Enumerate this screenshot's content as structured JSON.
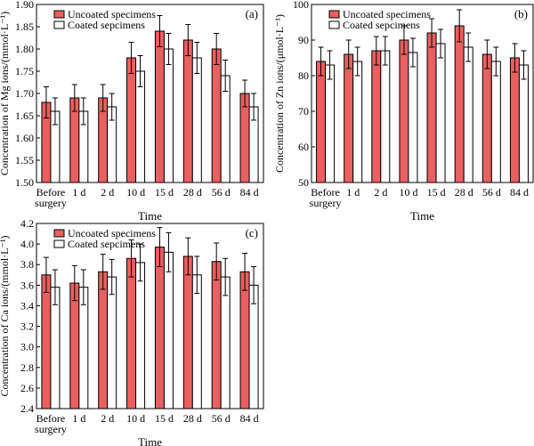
{
  "chart_data": [
    {
      "panel_label": "(a)",
      "type": "bar",
      "categories": [
        "Before surgery",
        "1 d",
        "2 d",
        "10 d",
        "15 d",
        "28 d",
        "56 d",
        "84 d"
      ],
      "series": [
        {
          "name": "Uncoated specimens",
          "values": [
            1.68,
            1.69,
            1.69,
            1.78,
            1.84,
            1.82,
            1.8,
            1.7
          ],
          "errors": [
            0.035,
            0.03,
            0.03,
            0.035,
            0.035,
            0.035,
            0.035,
            0.03
          ]
        },
        {
          "name": "Coated sepcimens",
          "values": [
            1.66,
            1.66,
            1.67,
            1.75,
            1.8,
            1.78,
            1.74,
            1.67
          ],
          "errors": [
            0.03,
            0.03,
            0.03,
            0.035,
            0.035,
            0.035,
            0.035,
            0.03
          ]
        }
      ],
      "xlabel": "Time",
      "ylabel": "Concentration of Mg ions/(mmol·L⁻¹)",
      "ylim": [
        1.5,
        1.9
      ],
      "yticks": [
        "1.50",
        "1.55",
        "1.60",
        "1.65",
        "1.70",
        "1.75",
        "1.80",
        "1.85",
        "1.90"
      ],
      "grid": false,
      "legend": "top-left"
    },
    {
      "panel_label": "(b)",
      "type": "bar",
      "categories": [
        "Before surgery",
        "1 d",
        "2 d",
        "10 d",
        "15 d",
        "28 d",
        "56 d",
        "84 d"
      ],
      "series": [
        {
          "name": "Uncoated specimens",
          "values": [
            84,
            86,
            87,
            90,
            92,
            94,
            86,
            85
          ],
          "errors": [
            4,
            4,
            4,
            4,
            4,
            4.5,
            4,
            4
          ]
        },
        {
          "name": "Coated sepcimens",
          "values": [
            83,
            84,
            87,
            86.5,
            89,
            88,
            84,
            83
          ],
          "errors": [
            4,
            4,
            4,
            4,
            4,
            4,
            4,
            4
          ]
        }
      ],
      "xlabel": "Time",
      "ylabel": "Concentration of Zn ions/(μmol·L⁻¹)",
      "ylim": [
        50,
        100
      ],
      "yticks": [
        "50",
        "60",
        "70",
        "80",
        "90",
        "100"
      ],
      "grid": false,
      "legend": "top-left"
    },
    {
      "panel_label": "(c)",
      "type": "bar",
      "categories": [
        "Before surgery",
        "1 d",
        "2 d",
        "10 d",
        "15 d",
        "28 d",
        "56 d",
        "84 d"
      ],
      "series": [
        {
          "name": "Uncoated specimens",
          "values": [
            3.7,
            3.62,
            3.73,
            3.86,
            3.97,
            3.88,
            3.83,
            3.73
          ],
          "errors": [
            0.17,
            0.17,
            0.17,
            0.18,
            0.19,
            0.18,
            0.18,
            0.18
          ]
        },
        {
          "name": "Coated sepcimens",
          "values": [
            3.58,
            3.58,
            3.68,
            3.82,
            3.92,
            3.7,
            3.68,
            3.6
          ],
          "errors": [
            0.17,
            0.17,
            0.17,
            0.18,
            0.19,
            0.18,
            0.18,
            0.18
          ]
        }
      ],
      "xlabel": "Time",
      "ylabel": "Concentration of Ca ions/(mmol·L⁻¹)",
      "ylim": [
        2.4,
        4.2
      ],
      "yticks": [
        "2.4",
        "2.6",
        "2.8",
        "3.0",
        "3.2",
        "3.4",
        "3.6",
        "3.8",
        "4.0",
        "4.2"
      ],
      "grid": false,
      "legend": "top-left"
    }
  ],
  "colors": {
    "uncoated_fill": "#ea5f5f",
    "coated_fill": "#ffffff",
    "stroke": "#000000"
  }
}
